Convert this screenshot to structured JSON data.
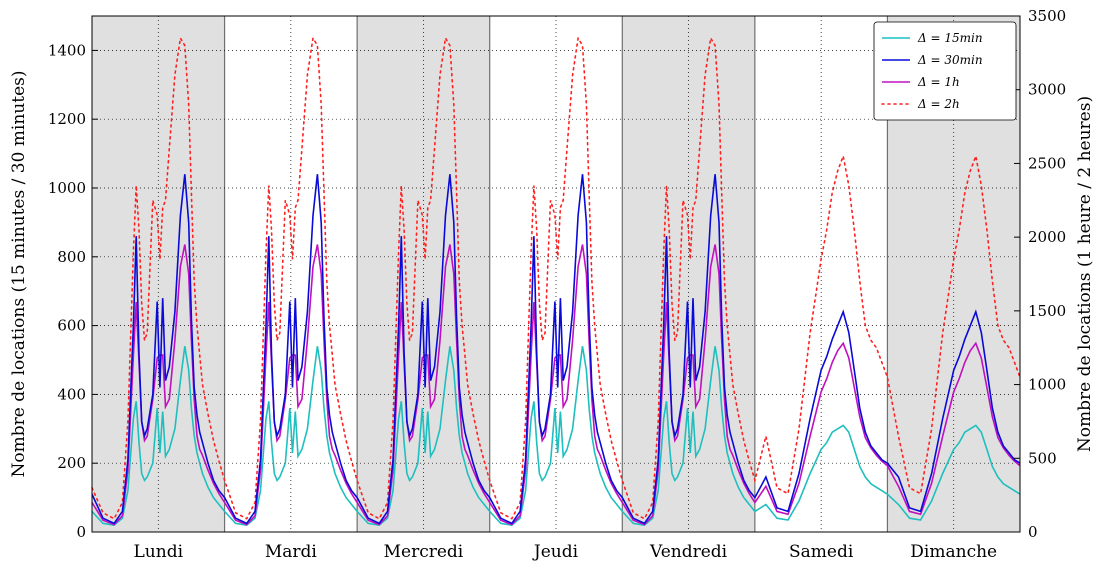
{
  "chart_data": {
    "type": "line",
    "ylabel_left": "Nombre de locations (15 minutes / 30 minutes)",
    "ylabel_right": "Nombre de locations (1 heure / 2 heures)",
    "ylim_left": [
      0,
      1500
    ],
    "ylim_right": [
      0,
      3500
    ],
    "yticks_left": [
      "0",
      "200",
      "400",
      "600",
      "800",
      "1000",
      "1200",
      "1400"
    ],
    "yticks_right": [
      "0",
      "500",
      "1000",
      "1500",
      "2000",
      "2500",
      "3000",
      "3500"
    ],
    "days": [
      "Lundi",
      "Mardi",
      "Mercredi",
      "Jeudi",
      "Vendredi",
      "Samedi",
      "Dimanche"
    ],
    "shaded_days": [
      0,
      2,
      4,
      6
    ],
    "grid": true,
    "legend_position": "top-right",
    "legend": [
      {
        "label": "Δ = 15min",
        "color": "#1fbfbf",
        "style": "solid",
        "axis": "left"
      },
      {
        "label": "Δ = 30min",
        "color": "#0a0ad8",
        "style": "solid",
        "axis": "left"
      },
      {
        "label": "Δ = 1h",
        "color": "#c010c0",
        "style": "solid",
        "axis": "right"
      },
      {
        "label": "Δ = 2h",
        "color": "#ff2020",
        "style": "dotted",
        "axis": "right"
      }
    ],
    "weekday_profile": {
      "hours": [
        0,
        2,
        4,
        5.5,
        6.5,
        7.5,
        8,
        8.5,
        9,
        9.5,
        10,
        11,
        11.8,
        12.3,
        12.8,
        13.3,
        14,
        15,
        16,
        16.8,
        17.5,
        18,
        18.5,
        19,
        19.5,
        20,
        21,
        22,
        23,
        24
      ],
      "series": [
        {
          "name": "Δ = 15min",
          "values": [
            60,
            25,
            20,
            40,
            120,
            330,
            380,
            260,
            170,
            150,
            160,
            200,
            360,
            230,
            350,
            220,
            240,
            300,
            440,
            540,
            470,
            360,
            280,
            230,
            200,
            170,
            130,
            100,
            80,
            60
          ]
        },
        {
          "name": "Δ = 30min",
          "values": [
            110,
            40,
            25,
            60,
            210,
            600,
            860,
            520,
            320,
            280,
            300,
            400,
            670,
            420,
            680,
            440,
            480,
            640,
            920,
            1040,
            900,
            620,
            420,
            340,
            290,
            260,
            200,
            150,
            120,
            100
          ]
        },
        {
          "name": "Δ = 1h",
          "values": [
            200,
            80,
            50,
            110,
            420,
            1200,
            1560,
            1150,
            750,
            620,
            650,
            900,
            1180,
            1200,
            1200,
            850,
            900,
            1300,
            1800,
            1950,
            1750,
            1300,
            900,
            650,
            560,
            520,
            420,
            330,
            260,
            200
          ]
        },
        {
          "name": "Δ = 2h",
          "values": [
            300,
            130,
            90,
            200,
            750,
            1900,
            2350,
            2050,
            1550,
            1300,
            1350,
            2250,
            2150,
            1850,
            2200,
            2250,
            2600,
            3100,
            3350,
            3300,
            2900,
            2300,
            1700,
            1400,
            1200,
            1000,
            800,
            620,
            480,
            350
          ]
        }
      ]
    },
    "weekend_profile": {
      "hours": [
        0,
        2,
        4,
        6,
        8,
        10,
        12,
        13,
        14,
        15,
        16,
        17,
        18,
        19,
        20,
        21,
        22,
        23,
        24
      ],
      "series": [
        {
          "name": "Δ = 15min",
          "values": [
            170,
            80,
            40,
            35,
            90,
            170,
            240,
            260,
            290,
            300,
            310,
            290,
            240,
            190,
            160,
            140,
            130,
            120,
            110
          ]
        },
        {
          "name": "Δ = 30min",
          "values": [
            330,
            160,
            70,
            60,
            170,
            330,
            470,
            510,
            560,
            600,
            640,
            580,
            470,
            360,
            290,
            250,
            230,
            210,
            200
          ]
        },
        {
          "name": "Δ = 1h",
          "values": [
            640,
            310,
            140,
            120,
            330,
            650,
            950,
            1040,
            1150,
            1230,
            1280,
            1180,
            980,
            780,
            640,
            570,
            520,
            480,
            450
          ]
        },
        {
          "name": "Δ = 2h",
          "values": [
            1250,
            650,
            300,
            260,
            700,
            1350,
            1850,
            2050,
            2300,
            2450,
            2550,
            2350,
            2050,
            1700,
            1400,
            1300,
            1250,
            1150,
            1050
          ]
        }
      ]
    }
  }
}
